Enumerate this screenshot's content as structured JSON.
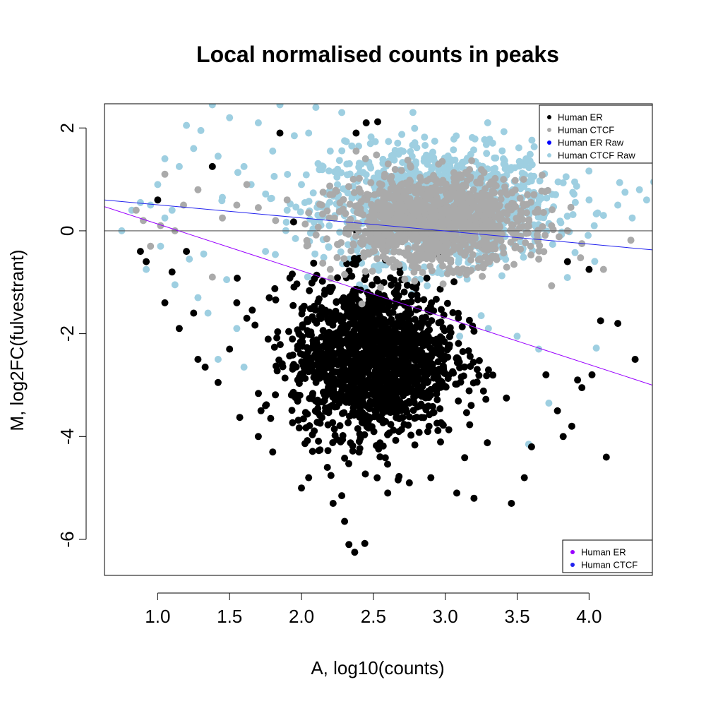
{
  "chart_data": {
    "type": "scatter",
    "title": "Local normalised counts in peaks",
    "xlabel": "A, log10(counts)",
    "ylabel": "M, log2FC(fulvestrant)",
    "xlim": [
      0.63,
      4.44
    ],
    "ylim": [
      -6.7,
      2.47
    ],
    "x_ticks": [
      1.0,
      1.5,
      2.0,
      2.5,
      3.0,
      3.5,
      4.0
    ],
    "x_tick_labels": [
      "1.0",
      "1.5",
      "2.0",
      "2.5",
      "3.0",
      "3.5",
      "4.0"
    ],
    "y_ticks": [
      -6,
      -4,
      -2,
      0,
      2
    ],
    "y_tick_labels": [
      "-6",
      "-4",
      "-2",
      "0",
      "2"
    ],
    "hline": {
      "y": 0,
      "color": "#555555"
    },
    "series": [
      {
        "name": "Human ER",
        "color": "#000000",
        "cloud_center": {
          "x": 2.5,
          "y": -2.5
        },
        "cloud_spread": {
          "x": 0.28,
          "y": 0.75
        },
        "points": [
          [
            0.88,
            -0.4
          ],
          [
            0.92,
            -0.6
          ],
          [
            1.0,
            0.6
          ],
          [
            1.05,
            -1.4
          ],
          [
            1.1,
            -0.8
          ],
          [
            1.15,
            -1.9
          ],
          [
            1.2,
            -0.4
          ],
          [
            1.25,
            -1.6
          ],
          [
            1.28,
            -2.5
          ],
          [
            1.33,
            -2.65
          ],
          [
            1.38,
            1.25
          ],
          [
            1.42,
            -2.95
          ],
          [
            1.5,
            -2.3
          ],
          [
            1.55,
            -1.4
          ],
          [
            1.62,
            -1.7
          ],
          [
            1.7,
            -4.0
          ],
          [
            1.75,
            -3.4
          ],
          [
            1.8,
            -4.3
          ],
          [
            1.85,
            1.9
          ],
          [
            2.0,
            -5.0
          ],
          [
            2.05,
            -4.8
          ],
          [
            2.18,
            -4.6
          ],
          [
            2.22,
            -5.3
          ],
          [
            2.28,
            -5.15
          ],
          [
            2.3,
            -5.65
          ],
          [
            2.33,
            -6.1
          ],
          [
            2.37,
            -6.25
          ],
          [
            2.44,
            -6.08
          ],
          [
            2.38,
            1.9
          ],
          [
            2.45,
            2.1
          ],
          [
            2.53,
            2.12
          ],
          [
            2.6,
            -5.1
          ],
          [
            2.75,
            -4.9
          ],
          [
            2.9,
            -4.8
          ],
          [
            3.08,
            -5.1
          ],
          [
            3.2,
            -5.2
          ],
          [
            3.46,
            -5.3
          ],
          [
            3.55,
            -4.8
          ],
          [
            3.6,
            -4.2
          ],
          [
            3.7,
            -2.8
          ],
          [
            3.78,
            -3.5
          ],
          [
            3.82,
            -4.0
          ],
          [
            3.88,
            -3.8
          ],
          [
            3.92,
            -2.9
          ],
          [
            3.95,
            -3.05
          ],
          [
            4.02,
            -2.8
          ],
          [
            4.08,
            -1.75
          ],
          [
            4.12,
            -4.4
          ],
          [
            4.2,
            -1.8
          ],
          [
            4.32,
            -2.5
          ],
          [
            4.0,
            -0.75
          ],
          [
            3.85,
            -0.6
          ]
        ]
      },
      {
        "name": "Human CTCF",
        "color": "#aaaaaa",
        "cloud_center": {
          "x": 2.92,
          "y": 0.2
        },
        "cloud_spread": {
          "x": 0.32,
          "y": 0.42
        },
        "points": [
          [
            0.85,
            0.4
          ],
          [
            0.9,
            0.2
          ],
          [
            0.95,
            -0.3
          ],
          [
            1.02,
            0.1
          ],
          [
            1.05,
            1.1
          ],
          [
            1.12,
            0.0
          ],
          [
            1.18,
            0.5
          ],
          [
            1.28,
            0.8
          ],
          [
            1.38,
            -0.9
          ],
          [
            1.45,
            0.25
          ],
          [
            1.55,
            0.5
          ],
          [
            1.62,
            0.9
          ],
          [
            1.7,
            0.45
          ],
          [
            1.82,
            0.2
          ],
          [
            1.9,
            0.6
          ],
          [
            2.05,
            0.35
          ],
          [
            2.15,
            0.75
          ],
          [
            2.2,
            -0.75
          ],
          [
            2.3,
            -0.85
          ],
          [
            2.42,
            -1.42
          ],
          [
            2.55,
            -1.1
          ],
          [
            4.1,
            -0.75
          ],
          [
            3.95,
            -0.25
          ],
          [
            3.85,
            0.0
          ],
          [
            3.65,
            -0.55
          ],
          [
            2.38,
            1.55
          ]
        ]
      },
      {
        "name": "Human ER Raw",
        "color": "#0000ff",
        "points": []
      },
      {
        "name": "Human CTCF Raw",
        "color": "#9ecfe1",
        "cloud_center": {
          "x": 2.95,
          "y": 0.5
        },
        "cloud_spread": {
          "x": 0.4,
          "y": 0.55
        },
        "points": [
          [
            0.75,
            0.0
          ],
          [
            0.82,
            0.4
          ],
          [
            0.88,
            0.55
          ],
          [
            0.92,
            -0.75
          ],
          [
            0.95,
            0.5
          ],
          [
            1.0,
            0.9
          ],
          [
            1.02,
            -0.3
          ],
          [
            1.05,
            1.4
          ],
          [
            1.1,
            0.4
          ],
          [
            1.15,
            1.25
          ],
          [
            1.2,
            2.05
          ],
          [
            1.22,
            -0.55
          ],
          [
            1.25,
            1.6
          ],
          [
            1.28,
            -1.3
          ],
          [
            1.3,
            1.95
          ],
          [
            1.35,
            -1.6
          ],
          [
            1.38,
            2.45
          ],
          [
            1.42,
            1.45
          ],
          [
            1.45,
            0.65
          ],
          [
            1.5,
            2.2
          ],
          [
            1.55,
            -1.9
          ],
          [
            1.6,
            1.25
          ],
          [
            1.65,
            0.9
          ],
          [
            1.7,
            2.1
          ],
          [
            1.75,
            -0.4
          ],
          [
            1.8,
            1.55
          ],
          [
            1.85,
            2.45
          ],
          [
            1.9,
            0.4
          ],
          [
            1.95,
            1.85
          ],
          [
            2.0,
            0.9
          ],
          [
            2.05,
            -0.2
          ],
          [
            2.1,
            2.4
          ],
          [
            2.15,
            1.25
          ],
          [
            2.2,
            1.55
          ],
          [
            2.25,
            0.9
          ],
          [
            2.3,
            1.75
          ],
          [
            2.35,
            1.65
          ],
          [
            1.05,
            0.25
          ],
          [
            1.12,
            -1.05
          ],
          [
            1.32,
            -0.45
          ],
          [
            1.48,
            -0.95
          ],
          [
            1.6,
            -2.65
          ],
          [
            1.42,
            -2.5
          ],
          [
            3.3,
            -1.9
          ],
          [
            3.5,
            -2.05
          ],
          [
            3.65,
            -2.3
          ],
          [
            3.72,
            -3.35
          ],
          [
            3.58,
            -4.15
          ],
          [
            4.05,
            -2.28
          ],
          [
            3.9,
            0.95
          ],
          [
            4.0,
            0.6
          ],
          [
            4.1,
            0.3
          ],
          [
            4.2,
            0.5
          ],
          [
            4.3,
            0.25
          ],
          [
            4.4,
            0.6
          ],
          [
            4.45,
            0.95
          ],
          [
            4.35,
            0.8
          ],
          [
            4.25,
            0.75
          ],
          [
            2.95,
            -2.25
          ],
          [
            3.1,
            -2.05
          ],
          [
            3.25,
            -1.65
          ],
          [
            2.05,
            1.9
          ],
          [
            2.28,
            2.3
          ]
        ]
      }
    ],
    "fit_lines": [
      {
        "name": "Human ER",
        "color": "#9900ff",
        "x1": 0.63,
        "y1": 0.47,
        "x2": 4.44,
        "y2": -3.0
      },
      {
        "name": "Human CTCF",
        "color": "#2222ee",
        "x1": 0.63,
        "y1": 0.6,
        "x2": 4.44,
        "y2": -0.37
      }
    ],
    "legend_top": {
      "placement": "top-right",
      "entries": [
        {
          "label": "Human ER",
          "color": "#000000"
        },
        {
          "label": "Human CTCF",
          "color": "#aaaaaa"
        },
        {
          "label": "Human ER Raw",
          "color": "#0000ff"
        },
        {
          "label": "Human CTCF Raw",
          "color": "#9ecfe1"
        }
      ]
    },
    "legend_bottom": {
      "placement": "bottom-right",
      "entries": [
        {
          "label": "Human ER",
          "color": "#9900ff"
        },
        {
          "label": "Human CTCF",
          "color": "#2222ee"
        }
      ]
    }
  }
}
